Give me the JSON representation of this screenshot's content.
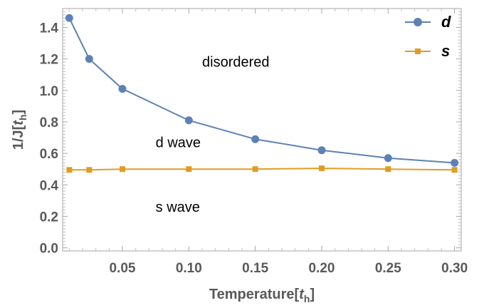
{
  "chart_data": {
    "type": "line",
    "xlabel_main": "Temperature[",
    "xlabel_var": "t",
    "xlabel_sub": "h",
    "xlabel_close": "]",
    "ylabel_main": "1/J[",
    "ylabel_var": "t",
    "ylabel_sub": "h",
    "ylabel_close": "]",
    "xlim": [
      0.005,
      0.305
    ],
    "ylim": [
      -0.02,
      1.52
    ],
    "xticks": [
      0.05,
      0.1,
      0.15,
      0.2,
      0.25,
      0.3
    ],
    "xtick_labels": [
      "0.05",
      "0.10",
      "0.15",
      "0.20",
      "0.25",
      "0.30"
    ],
    "yticks": [
      0.0,
      0.2,
      0.4,
      0.6,
      0.8,
      1.0,
      1.2,
      1.4
    ],
    "ytick_labels": [
      "0.0",
      "0.2",
      "0.4",
      "0.6",
      "0.8",
      "1.0",
      "1.2",
      "1.4"
    ],
    "legend_position": "top-right",
    "series": [
      {
        "name": "d",
        "color": "#5e81b5",
        "marker": "circle",
        "x": [
          0.01,
          0.025,
          0.05,
          0.1,
          0.15,
          0.2,
          0.25,
          0.3
        ],
        "y": [
          1.46,
          1.2,
          1.01,
          0.81,
          0.69,
          0.62,
          0.57,
          0.54
        ]
      },
      {
        "name": "s",
        "color": "#e19c24",
        "marker": "square",
        "x": [
          0.01,
          0.025,
          0.05,
          0.1,
          0.15,
          0.2,
          0.25,
          0.3
        ],
        "y": [
          0.495,
          0.495,
          0.5,
          0.5,
          0.5,
          0.505,
          0.5,
          0.495
        ]
      }
    ],
    "annotations": [
      {
        "text": "disordered",
        "x": 0.11,
        "y": 1.15
      },
      {
        "text": "d wave",
        "x": 0.075,
        "y": 0.64
      },
      {
        "text": "s wave",
        "x": 0.075,
        "y": 0.23
      }
    ]
  }
}
